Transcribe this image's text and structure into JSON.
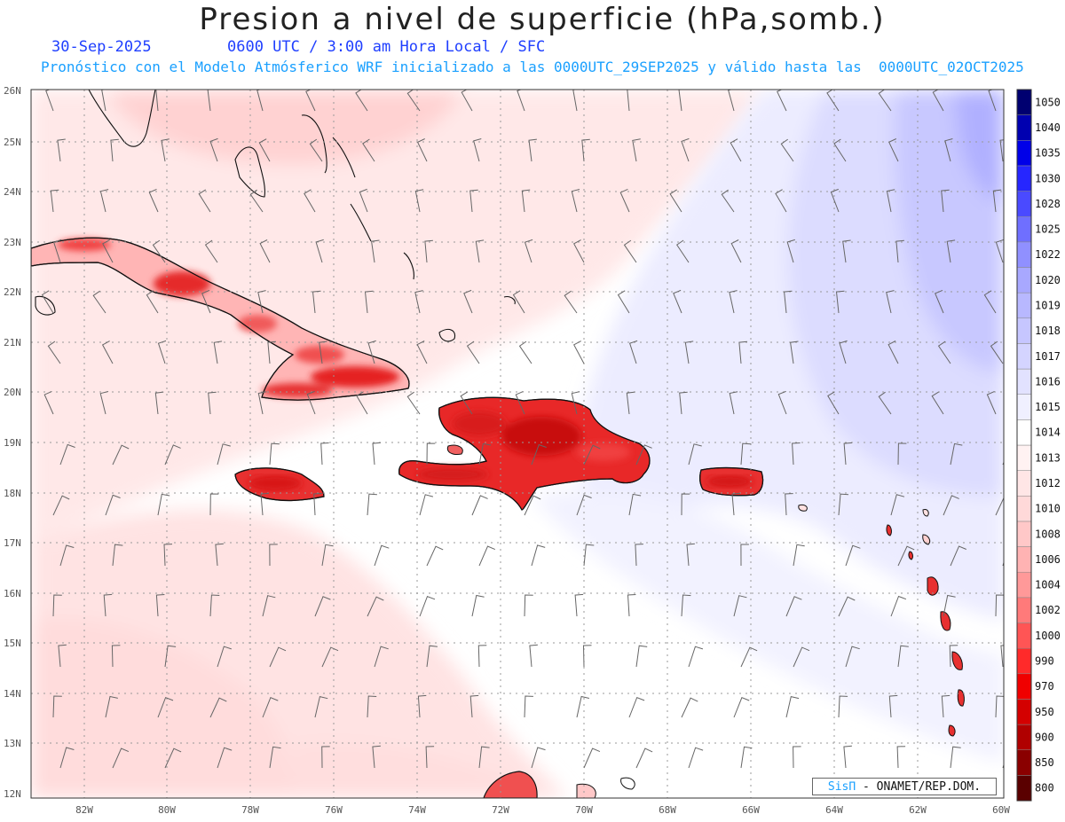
{
  "title": "Presion a nivel de superficie (hPa,somb.)",
  "date": "30-Sep-2025",
  "time_info": "0600 UTC / 3:00 am Hora Local / SFC",
  "forecast_info": "Pronóstico con el Modelo Atmósferico WRF inicializado a las 0000UTC_29SEP2025 y válido hasta las  0000UTC_02OCT2025",
  "lat_labels": [
    "26N",
    "25N",
    "24N",
    "23N",
    "22N",
    "21N",
    "20N",
    "19N",
    "18N",
    "17N",
    "16N",
    "15N",
    "14N",
    "13N",
    "12N"
  ],
  "lon_labels": [
    "82W",
    "80W",
    "78W",
    "76W",
    "74W",
    "72W",
    "70W",
    "68W",
    "66W",
    "64W",
    "62W",
    "60W"
  ],
  "colorbar": {
    "levels": [
      "800",
      "850",
      "900",
      "950",
      "970",
      "990",
      "1000",
      "1002",
      "1004",
      "1006",
      "1008",
      "1010",
      "1012",
      "1013",
      "1014",
      "1015",
      "1016",
      "1017",
      "1018",
      "1019",
      "1020",
      "1022",
      "1025",
      "1028",
      "1030",
      "1035",
      "1040",
      "1050"
    ],
    "colors": [
      "#5a0000",
      "#8a0000",
      "#b00000",
      "#d40000",
      "#f00000",
      "#ff2a2a",
      "#ff5555",
      "#ff7a7a",
      "#ff9999",
      "#ffb3b3",
      "#ffc8c8",
      "#ffd9d9",
      "#ffe6e6",
      "#fff2f2",
      "#ffffff",
      "#f0f0ff",
      "#e2e2ff",
      "#d4d4ff",
      "#c6c6ff",
      "#b8b8ff",
      "#a8a8ff",
      "#9090ff",
      "#6f6fff",
      "#4a4aff",
      "#2626ff",
      "#0000e8",
      "#0000b0",
      "#000070"
    ]
  },
  "credit": {
    "brand": "SisΠ",
    "org": " - ONAMET/REP.DOM."
  }
}
